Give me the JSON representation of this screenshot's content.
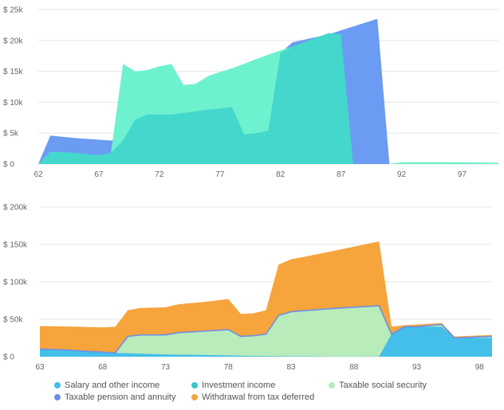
{
  "chart_data": [
    {
      "type": "area",
      "title": "",
      "xlabel": "",
      "ylabel": "",
      "xlim": [
        62,
        100
      ],
      "ylim": [
        0,
        25000
      ],
      "x_ticks": [
        62,
        67,
        72,
        77,
        82,
        87,
        92,
        97
      ],
      "x_tick_labels": [
        "62",
        "67",
        "72",
        "77",
        "82",
        "87",
        "92",
        "97"
      ],
      "y_ticks": [
        0,
        5000,
        10000,
        15000,
        20000,
        25000
      ],
      "y_tick_labels": [
        "$ 0",
        "$ 5k",
        "$ 10k",
        "$ 15k",
        "$ 20k",
        "$ 25k"
      ],
      "grid": true,
      "series": [
        {
          "color": "#6b9bf2",
          "points": [
            [
              62,
              0
            ],
            [
              63,
              4600
            ],
            [
              65,
              4200
            ],
            [
              68,
              3800
            ],
            [
              68.5,
              4000
            ],
            [
              70,
              7000
            ],
            [
              71,
              8000
            ],
            [
              73,
              8000
            ],
            [
              76,
              8800
            ],
            [
              78,
              9200
            ],
            [
              79,
              4800
            ],
            [
              80,
              5000
            ],
            [
              81,
              5400
            ],
            [
              82,
              18000
            ],
            [
              83,
              19700
            ],
            [
              86,
              21000
            ],
            [
              90,
              23500
            ],
            [
              91,
              0
            ],
            [
              100,
              0
            ]
          ]
        },
        {
          "color": "#6ef1cf",
          "points": [
            [
              62,
              0
            ],
            [
              63,
              2000
            ],
            [
              65,
              1800
            ],
            [
              67,
              1400
            ],
            [
              68,
              1800
            ],
            [
              69,
              16200
            ],
            [
              70,
              15000
            ],
            [
              71,
              15200
            ],
            [
              72,
              15800
            ],
            [
              73,
              16200
            ],
            [
              74,
              12800
            ],
            [
              75,
              13000
            ],
            [
              76,
              14200
            ],
            [
              77,
              14900
            ],
            [
              78,
              15500
            ],
            [
              79,
              16200
            ],
            [
              80,
              17000
            ],
            [
              82,
              18400
            ],
            [
              83,
              19000
            ],
            [
              86,
              21200
            ],
            [
              87,
              0
            ],
            [
              91,
              0
            ],
            [
              92,
              300
            ],
            [
              97,
              300
            ],
            [
              100,
              200
            ]
          ]
        },
        {
          "color": "#44d7cc",
          "points": [
            [
              62,
              0
            ],
            [
              63,
              2000
            ],
            [
              65,
              1800
            ],
            [
              67,
              1400
            ],
            [
              68,
              1800
            ],
            [
              69,
              3800
            ],
            [
              70,
              7200
            ],
            [
              71,
              8000
            ],
            [
              73,
              8000
            ],
            [
              76,
              8800
            ],
            [
              78,
              9200
            ],
            [
              79,
              4800
            ],
            [
              80,
              5000
            ],
            [
              81,
              5400
            ],
            [
              82,
              18000
            ],
            [
              83,
              19000
            ],
            [
              86,
              21200
            ],
            [
              87,
              21000
            ],
            [
              88,
              0
            ],
            [
              100,
              0
            ]
          ]
        }
      ]
    },
    {
      "type": "area",
      "title": "",
      "xlabel": "",
      "ylabel": "",
      "xlim": [
        63,
        99
      ],
      "ylim": [
        0,
        200000
      ],
      "x_ticks": [
        63,
        68,
        73,
        78,
        83,
        88,
        93,
        98
      ],
      "x_tick_labels": [
        "63",
        "68",
        "73",
        "78",
        "83",
        "88",
        "93",
        "98"
      ],
      "y_ticks": [
        0,
        50000,
        100000,
        150000,
        200000
      ],
      "y_tick_labels": [
        "$ 0",
        "$ 50k",
        "$ 100k",
        "$ 150k",
        "$ 200k"
      ],
      "grid": true,
      "stacked": true,
      "series": [
        {
          "name": "Salary and other income",
          "color": "#43bfe9",
          "values": []
        },
        {
          "name": "Investment income",
          "color": "#3bc6c9",
          "values": []
        },
        {
          "name": "Taxable social security",
          "color": "#b9ecbb",
          "values": []
        },
        {
          "name": "Taxable pension and annuity",
          "color": "#6f8ee6",
          "values": []
        },
        {
          "name": "Withdrawal from tax deferred",
          "color": "#f6a43c",
          "values": []
        }
      ],
      "stack_boundaries": [
        {
          "key": "investment_top",
          "fill": "#43bfe9",
          "points": [
            [
              63,
              10000
            ],
            [
              65,
              9000
            ],
            [
              67,
              7000
            ],
            [
              69,
              5000
            ],
            [
              71,
              4000
            ],
            [
              73,
              3000
            ],
            [
              75,
              2500
            ],
            [
              77,
              2000
            ],
            [
              80,
              1000
            ],
            [
              83,
              500
            ],
            [
              86,
              300
            ],
            [
              88,
              200
            ],
            [
              90,
              200
            ],
            [
              91,
              30000
            ],
            [
              92,
              40000
            ],
            [
              93,
              40000
            ],
            [
              95,
              40000
            ],
            [
              96,
              25000
            ],
            [
              99,
              25000
            ]
          ]
        },
        {
          "key": "social_top",
          "fill": "#b9ecbb",
          "points": [
            [
              63,
              10000
            ],
            [
              65,
              9000
            ],
            [
              67,
              7000
            ],
            [
              69,
              5000
            ],
            [
              70,
              27000
            ],
            [
              71,
              29000
            ],
            [
              73,
              29000
            ],
            [
              74,
              32000
            ],
            [
              76,
              34000
            ],
            [
              78,
              36000
            ],
            [
              79,
              27000
            ],
            [
              80,
              28000
            ],
            [
              81,
              30000
            ],
            [
              82,
              55000
            ],
            [
              83,
              60000
            ],
            [
              86,
              64000
            ],
            [
              90,
              68000
            ],
            [
              91,
              30000
            ],
            [
              92,
              40000
            ],
            [
              93,
              40000
            ],
            [
              95,
              43000
            ],
            [
              96,
              25000
            ],
            [
              99,
              27000
            ]
          ]
        },
        {
          "key": "withdrawal_top",
          "fill": "#f6a43c",
          "points": [
            [
              63,
              41000
            ],
            [
              66,
              40000
            ],
            [
              68,
              39000
            ],
            [
              69,
              40000
            ],
            [
              70,
              62000
            ],
            [
              71,
              65000
            ],
            [
              73,
              66000
            ],
            [
              74,
              70000
            ],
            [
              76,
              73000
            ],
            [
              78,
              77000
            ],
            [
              79,
              57000
            ],
            [
              80,
              58000
            ],
            [
              81,
              62000
            ],
            [
              82,
              123000
            ],
            [
              83,
              130000
            ],
            [
              86,
              140000
            ],
            [
              90,
              154000
            ],
            [
              91,
              40000
            ],
            [
              92,
              42000
            ],
            [
              93,
              43000
            ],
            [
              95,
              45000
            ],
            [
              96,
              27000
            ],
            [
              99,
              29000
            ]
          ]
        }
      ]
    }
  ]
}
